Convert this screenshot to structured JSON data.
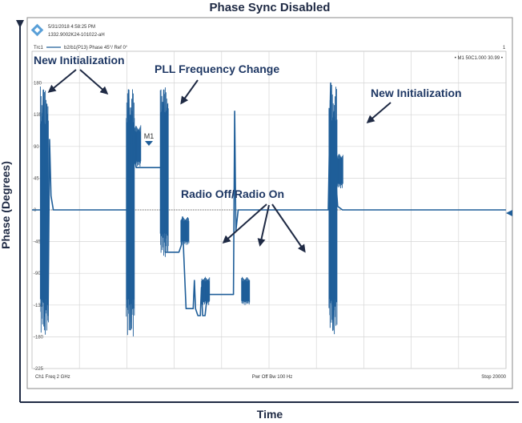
{
  "chart_data": {
    "type": "line",
    "title": "Phase Sync Disabled",
    "xlabel": "Time",
    "ylabel": "Phase (Degrees)",
    "ylim": [
      -225,
      225
    ],
    "xlim": [
      0,
      20000
    ],
    "grid": true,
    "y_ticks": [
      {
        "value": 180,
        "label": "180"
      },
      {
        "value": 135,
        "label": "135"
      },
      {
        "value": 90,
        "label": "90"
      },
      {
        "value": 45,
        "label": "45"
      },
      {
        "value": 0,
        "label": "0"
      },
      {
        "value": -45,
        "label": "-45"
      },
      {
        "value": -90,
        "label": "-90"
      },
      {
        "value": -135,
        "label": "-135"
      },
      {
        "value": -180,
        "label": "-180"
      },
      {
        "value": -225,
        "label": "-225"
      }
    ],
    "instrument": {
      "timestamp": "5/31/2018 4:58:25 PM",
      "device_id": "1332.9002K24-101022-aH",
      "trace_label": "Trc1",
      "trace_desc": "b2/b1(P13)  Phase  45°/  Ref 0°",
      "trace_num": "1",
      "marker_readout": "• M1  50C1.000  30.99  •",
      "marker_label": "M1",
      "bottom_left": "Ch1  Freq  2 GHz",
      "bottom_mid": "Pwr  Off  Bw  100 Hz",
      "bottom_right": "Stop  20000"
    },
    "series": [
      {
        "color": "#1f5e99",
        "points": [
          [
            0,
            0
          ],
          [
            400,
            0
          ],
          [
            480,
            170
          ],
          [
            540,
            -170
          ],
          [
            620,
            150
          ],
          [
            680,
            -150
          ],
          [
            740,
            100
          ],
          [
            800,
            20
          ],
          [
            900,
            0
          ],
          [
            4000,
            0
          ],
          [
            4080,
            170
          ],
          [
            4150,
            -170
          ],
          [
            4220,
            140
          ],
          [
            4300,
            80
          ],
          [
            4400,
            60
          ],
          [
            5500,
            60
          ],
          [
            5560,
            170
          ],
          [
            5620,
            -60
          ],
          [
            6200,
            -60
          ],
          [
            6300,
            -50
          ],
          [
            6350,
            -10
          ],
          [
            6400,
            -60
          ],
          [
            6500,
            -140
          ],
          [
            6800,
            -140
          ],
          [
            6850,
            -100
          ],
          [
            6900,
            -140
          ],
          [
            7000,
            -150
          ],
          [
            7100,
            -150
          ],
          [
            7150,
            -110
          ],
          [
            7200,
            -150
          ],
          [
            7300,
            -150
          ],
          [
            7400,
            -120
          ],
          [
            8500,
            -120
          ],
          [
            8550,
            140
          ],
          [
            8600,
            -30
          ],
          [
            8700,
            0
          ],
          [
            9000,
            0
          ],
          [
            12500,
            0
          ],
          [
            12600,
            180
          ],
          [
            12700,
            -170
          ],
          [
            12800,
            50
          ],
          [
            12900,
            5
          ],
          [
            13100,
            0
          ],
          [
            20000,
            0
          ]
        ]
      }
    ],
    "bursts": [
      {
        "x": 520,
        "ymin": -180,
        "ymax": 175
      },
      {
        "x": 4150,
        "ymin": -180,
        "ymax": 175
      },
      {
        "x": 4420,
        "ymin": 60,
        "ymax": 120
      },
      {
        "x": 5580,
        "ymin": -70,
        "ymax": 175
      },
      {
        "x": 6450,
        "ymin": -50,
        "ymax": -10
      },
      {
        "x": 7320,
        "ymin": -135,
        "ymax": -95
      },
      {
        "x": 9010,
        "ymin": -135,
        "ymax": -95
      },
      {
        "x": 12700,
        "ymin": -180,
        "ymax": 180
      },
      {
        "x": 12950,
        "ymin": 30,
        "ymax": 80
      }
    ],
    "annotations": [
      {
        "text": "New Initialization"
      },
      {
        "text": "PLL Frequency Change"
      },
      {
        "text": "New Initialization"
      },
      {
        "text": "Radio Off/Radio On"
      }
    ]
  }
}
